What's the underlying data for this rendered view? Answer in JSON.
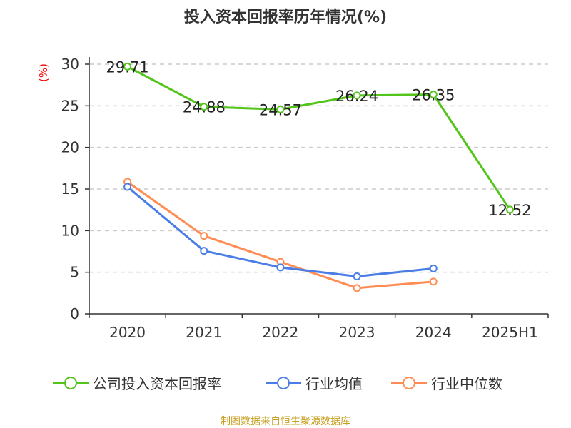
{
  "title": "投入资本回报率历年情况(%)",
  "source": "制图数据来自恒生聚源数据库",
  "chart_data": {
    "type": "line",
    "title": "投入资本回报率历年情况(%)",
    "ylabel": "(%)",
    "categories": [
      "2020",
      "2021",
      "2022",
      "2023",
      "2024",
      "2025H1"
    ],
    "ylim": [
      0,
      30
    ],
    "yticks": [
      0,
      5,
      10,
      15,
      20,
      25,
      30
    ],
    "grid": true,
    "legend_position": "bottom",
    "series": [
      {
        "name": "公司投入资本回报率",
        "color": "#52c41a",
        "values": [
          29.71,
          24.88,
          24.57,
          26.24,
          26.35,
          12.52
        ],
        "labels": [
          "29.71",
          "24.88",
          "24.57",
          "26.24",
          "26.35",
          "12.52"
        ]
      },
      {
        "name": "行业均值",
        "color": "#4a7ee6",
        "values": [
          15.26,
          7.58,
          5.58,
          4.5,
          5.45,
          null
        ]
      },
      {
        "name": "行业中位数",
        "color": "#ff8c55",
        "values": [
          15.86,
          9.38,
          6.25,
          3.1,
          3.87,
          null
        ]
      }
    ]
  }
}
